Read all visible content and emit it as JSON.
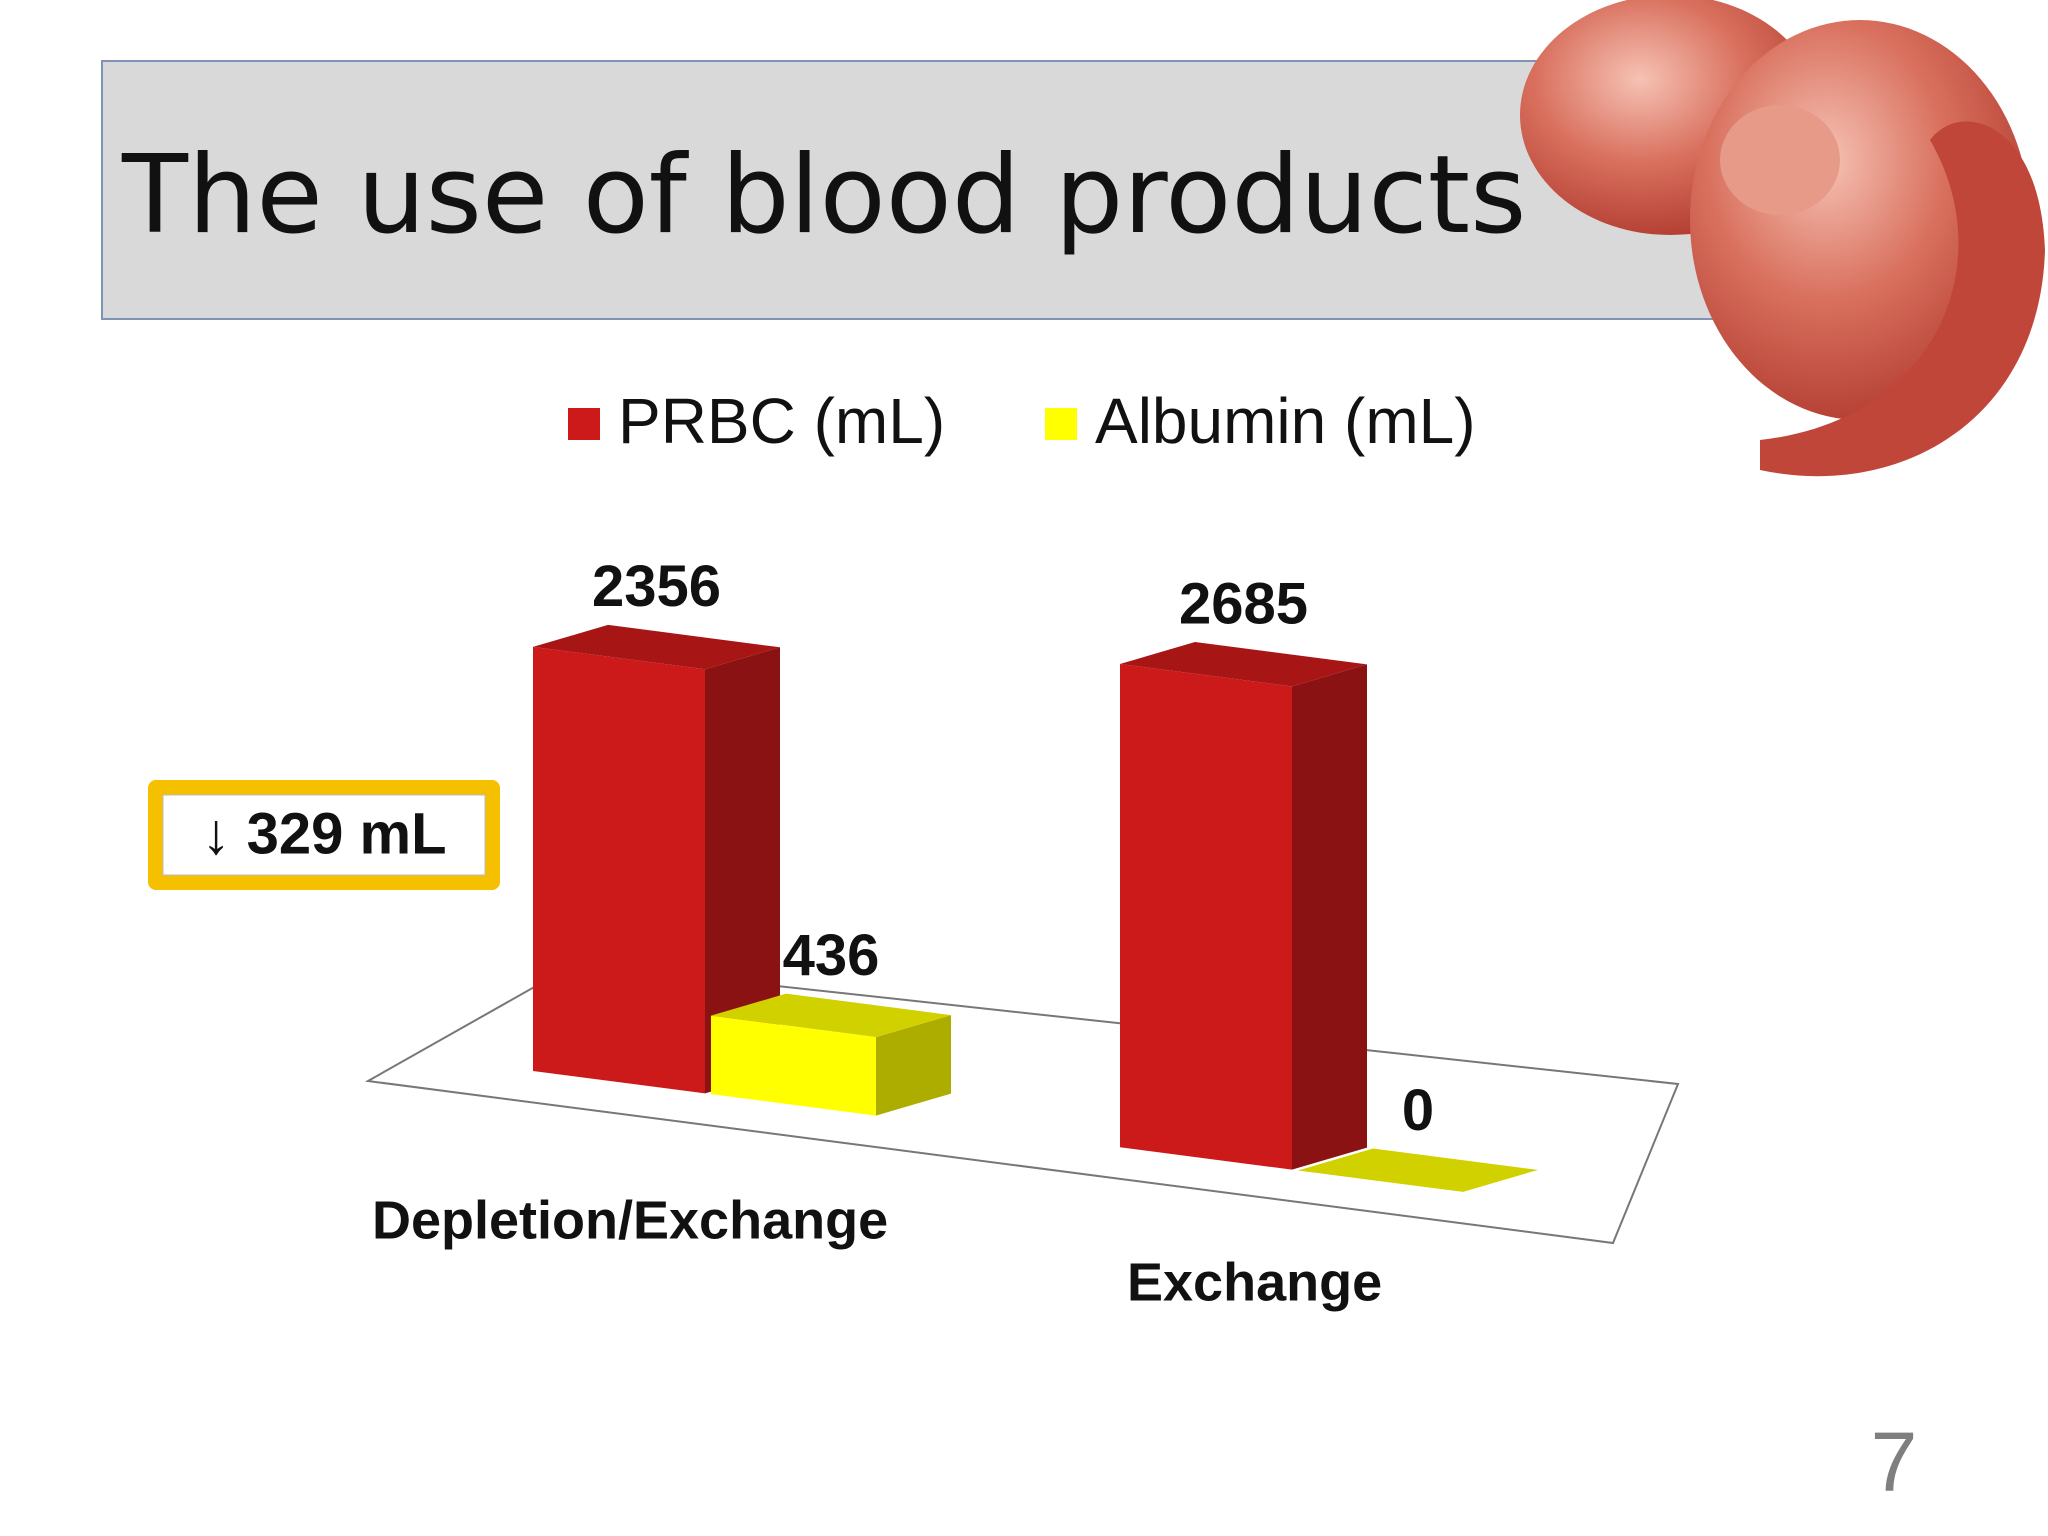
{
  "chart_data": {
    "type": "bar3d",
    "title": "The use of blood products",
    "categories": [
      "Depletion/Exchange",
      "Exchange"
    ],
    "series": [
      {
        "name": "PRBC (mL)",
        "color": "#cc1a1a",
        "values": [
          2356,
          2685
        ]
      },
      {
        "name": "Albumin (mL)",
        "color": "#ffff00",
        "values": [
          436,
          0
        ]
      }
    ],
    "annotation": "↓ 329 mL",
    "page_number": "7"
  }
}
